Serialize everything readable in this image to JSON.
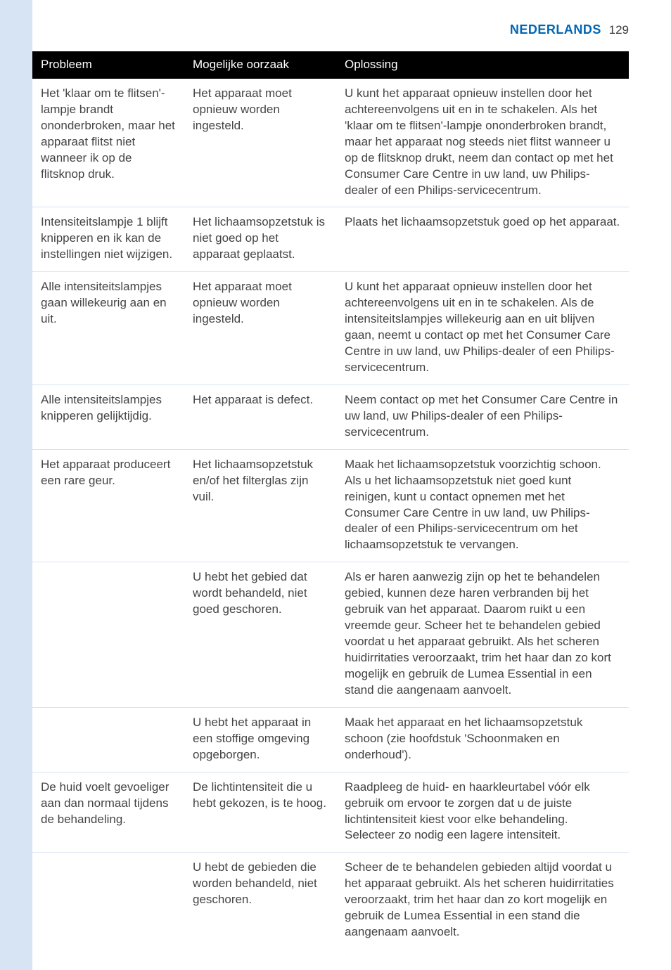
{
  "header": {
    "language": "NEDERLANDS",
    "page_number": "129"
  },
  "table": {
    "columns": [
      "Probleem",
      "Mogelijke oorzaak",
      "Oplossing"
    ],
    "rows": [
      {
        "problem": "Het 'klaar om te flitsen'-lampje brandt ononderbroken, maar het apparaat flitst niet wanneer ik op de flitsknop druk.",
        "cause": "Het apparaat moet opnieuw worden ingesteld.",
        "solution": "U kunt het apparaat opnieuw instellen door het achtereenvolgens uit en in te schakelen. Als het 'klaar om te flitsen'-lampje ononderbroken brandt, maar het apparaat nog steeds niet flitst wanneer u op de flitsknop drukt, neem dan contact op met het Consumer Care Centre in uw land, uw Philips-dealer of een Philips-servicecentrum."
      },
      {
        "problem": "Intensiteitslampje 1 blijft knipperen en ik kan de instellingen niet wijzigen.",
        "cause": "Het lichaamsopzetstuk is niet goed op het apparaat geplaatst.",
        "solution": "Plaats het lichaamsopzetstuk goed op het apparaat."
      },
      {
        "problem": " Alle intensiteitslampjes gaan willekeurig aan en uit.",
        "cause": "Het apparaat moet opnieuw worden ingesteld.",
        "solution": "U kunt het apparaat opnieuw instellen door het achtereenvolgens uit en in te schakelen. Als de intensiteitslampjes willekeurig aan en uit blijven gaan, neemt u contact op met het Consumer Care Centre in uw land, uw Philips-dealer of een Philips-servicecentrum."
      },
      {
        "problem": " Alle intensiteitslampjes knipperen gelijktijdig.",
        "cause": "Het apparaat is defect.",
        "solution": "Neem contact op met het Consumer Care Centre in uw land, uw Philips-dealer of een Philips-servicecentrum."
      },
      {
        "problem": "Het apparaat produceert een rare geur.",
        "cause": "Het lichaamsopzetstuk en/of het filterglas zijn vuil.",
        "solution": "Maak het lichaamsopzetstuk voorzichtig schoon. Als u het lichaamsopzetstuk niet goed kunt reinigen, kunt u contact opnemen met het Consumer Care Centre in uw land, uw Philips-dealer of een Philips-servicecentrum om het lichaamsopzetstuk te vervangen."
      },
      {
        "problem": "",
        "cause": "U hebt het gebied dat wordt behandeld, niet goed geschoren.",
        "solution": "Als er haren aanwezig zijn op het te behandelen gebied, kunnen deze haren verbranden bij het gebruik van het apparaat. Daarom ruikt u een vreemde geur. Scheer het te behandelen gebied voordat u het apparaat gebruikt. Als het scheren huidirritaties veroorzaakt, trim het haar dan zo kort mogelijk en gebruik de Lumea Essential in een stand die aangenaam aanvoelt."
      },
      {
        "problem": "",
        "cause": "U hebt het apparaat in een stoffige omgeving opgeborgen.",
        "solution": "Maak het apparaat en het lichaamsopzetstuk schoon (zie hoofdstuk 'Schoonmaken en onderhoud')."
      },
      {
        "problem": "De huid voelt gevoeliger aan dan normaal tijdens de behandeling.",
        "cause": "De lichtintensiteit die u hebt gekozen, is te hoog.",
        "solution": "Raadpleeg de huid- en haarkleurtabel vóór elk gebruik om ervoor te zorgen dat u de juiste lichtintensiteit kiest voor elke behandeling. Selecteer zo nodig een lagere intensiteit."
      },
      {
        "problem": "",
        "cause": "U hebt de gebieden die worden behandeld, niet geschoren.",
        "solution": "Scheer de te behandelen gebieden altijd voordat u het apparaat gebruikt. Als het scheren huidirritaties veroorzaakt, trim het haar dan zo kort mogelijk en gebruik de Lumea Essential in een stand die aangenaam aanvoelt."
      }
    ]
  }
}
